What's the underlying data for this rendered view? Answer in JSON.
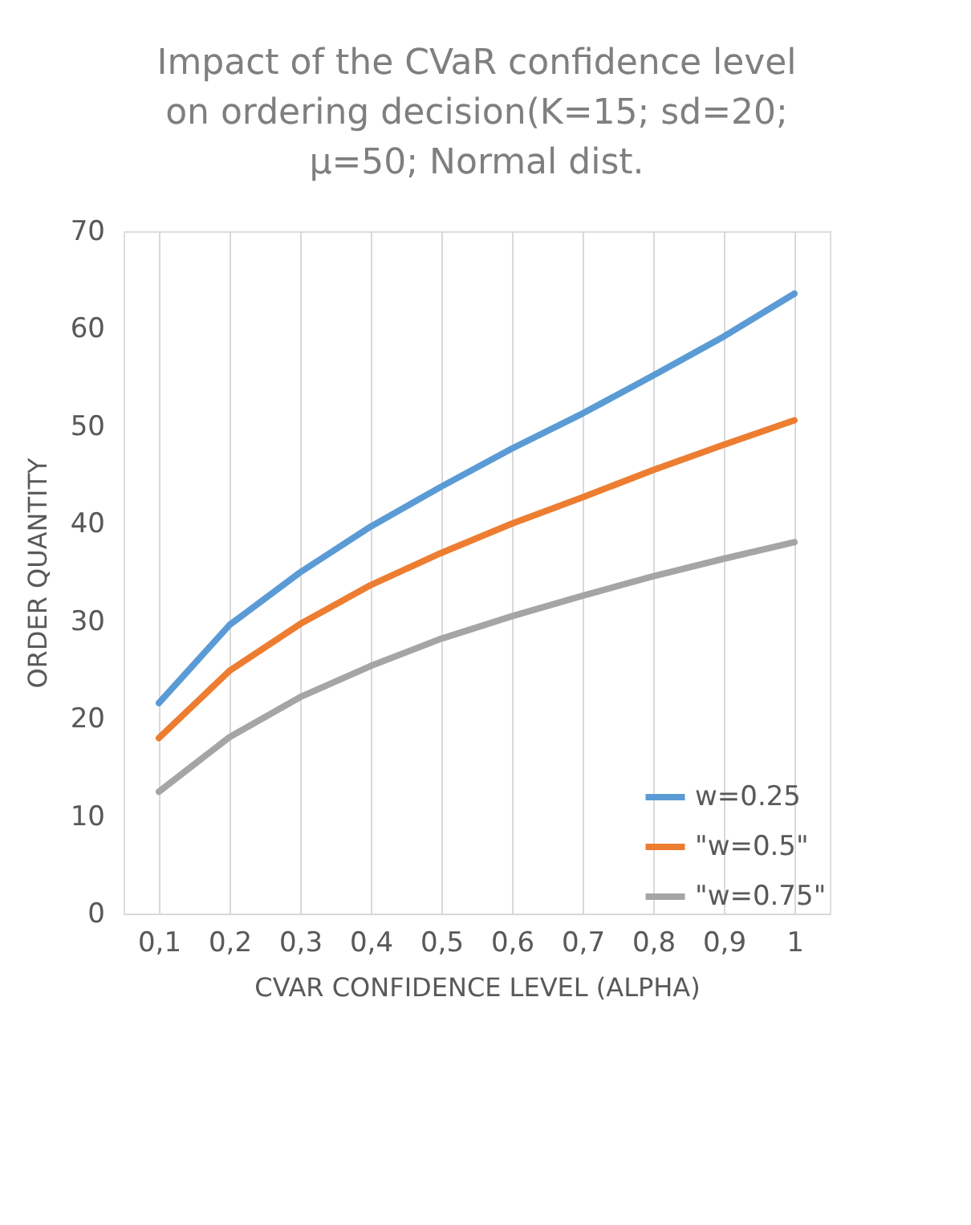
{
  "chart_data": {
    "type": "line",
    "title": "Impact of the CVaR confidence level\non ordering decision(K=15; sd=20;\nμ=50; Normal dist.",
    "xlabel": "CVAR CONFIDENCE LEVEL (ALPHA)",
    "ylabel": "ORDER QUANTITY",
    "categories": [
      "0,1",
      "0,2",
      "0,3",
      "0,4",
      "0,5",
      "0,6",
      "0,7",
      "0,8",
      "0,9",
      "1"
    ],
    "series": [
      {
        "name": "w=0.25",
        "color": "#5b9bd5",
        "values": [
          21.6,
          29.6,
          35.0,
          39.7,
          43.8,
          47.7,
          51.3,
          55.2,
          59.2,
          63.6
        ]
      },
      {
        "name": "\"w=0.5\"",
        "color": "#ed7d31",
        "values": [
          18.0,
          24.9,
          29.7,
          33.7,
          37.0,
          40.0,
          42.7,
          45.5,
          48.1,
          50.6
        ]
      },
      {
        "name": "\"w=0.75\"",
        "color": "#a5a5a5",
        "values": [
          12.5,
          18.1,
          22.2,
          25.4,
          28.2,
          30.5,
          32.6,
          34.6,
          36.4,
          38.1
        ]
      }
    ],
    "ylim": [
      0,
      70
    ],
    "yticks": [
      0,
      10,
      20,
      30,
      40,
      50,
      60,
      70
    ],
    "grid": "x",
    "legend": "bottom right",
    "marker": "none",
    "line_style": "solid"
  }
}
